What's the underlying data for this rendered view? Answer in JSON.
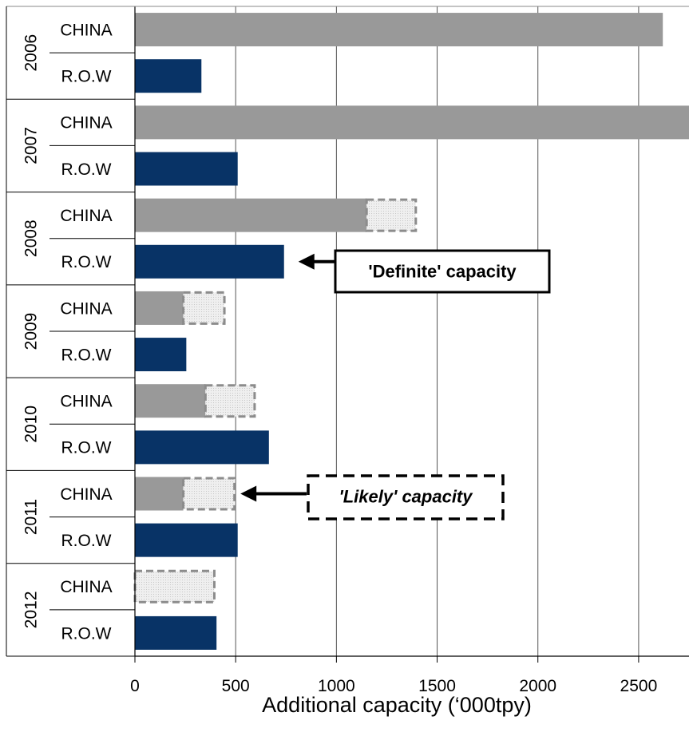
{
  "chart_data": {
    "type": "bar",
    "orientation": "horizontal",
    "title": "",
    "xlabel": "Additional capacity (‘000tpy)",
    "ylabel": "",
    "xlim": [
      0,
      2750
    ],
    "x_ticks": [
      0,
      500,
      1000,
      1500,
      2000,
      2500
    ],
    "grid": true,
    "colors": {
      "china_definite": "#999999",
      "row_definite": "#083366",
      "likely_fill": "#ececec",
      "likely_border": "#8c8c8c",
      "axis": "#000000",
      "gridline": "#555555"
    },
    "groups": [
      {
        "year": "2006",
        "rows": [
          {
            "label": "CHINA",
            "definite": 2620,
            "likely": 0
          },
          {
            "label": "R.O.W",
            "definite": 330,
            "likely": 0
          }
        ]
      },
      {
        "year": "2007",
        "rows": [
          {
            "label": "CHINA",
            "definite": 2750,
            "likely": 0
          },
          {
            "label": "R.O.W",
            "definite": 510,
            "likely": 0
          }
        ]
      },
      {
        "year": "2008",
        "rows": [
          {
            "label": "CHINA",
            "definite": 1150,
            "likely": 250
          },
          {
            "label": "R.O.W",
            "definite": 740,
            "likely": 0
          }
        ]
      },
      {
        "year": "2009",
        "rows": [
          {
            "label": "CHINA",
            "definite": 240,
            "likely": 210
          },
          {
            "label": "R.O.W",
            "definite": 255,
            "likely": 0
          }
        ]
      },
      {
        "year": "2010",
        "rows": [
          {
            "label": "CHINA",
            "definite": 350,
            "likely": 250
          },
          {
            "label": "R.O.W",
            "definite": 665,
            "likely": 0
          }
        ]
      },
      {
        "year": "2011",
        "rows": [
          {
            "label": "CHINA",
            "definite": 240,
            "likely": 260
          },
          {
            "label": "R.O.W",
            "definite": 510,
            "likely": 0
          }
        ]
      },
      {
        "year": "2012",
        "rows": [
          {
            "label": "CHINA",
            "definite": 0,
            "likely": 400
          },
          {
            "label": "R.O.W",
            "definite": 405,
            "likely": 0
          }
        ]
      }
    ],
    "annotations": [
      {
        "text": "'Definite' capacity",
        "style": "solid-box-bold",
        "points_to": "2008 R.O.W bar"
      },
      {
        "text": "'Likely' capacity",
        "style": "dashed-box-bold-italic",
        "points_to": "2011 CHINA likely segment"
      }
    ]
  }
}
